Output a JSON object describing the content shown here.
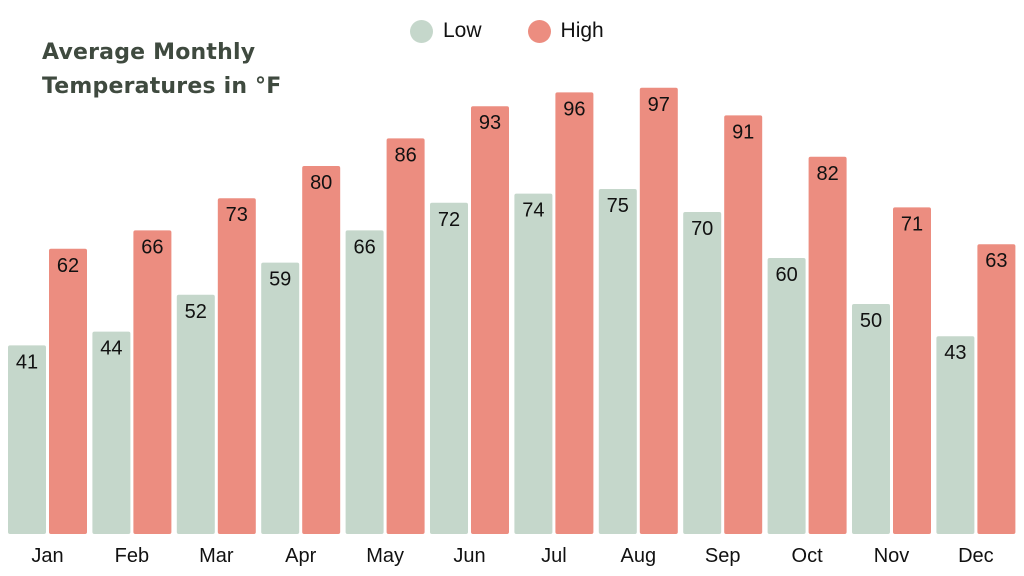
{
  "chart_data": {
    "type": "bar",
    "title": "Average Monthly Temperatures in °F",
    "categories": [
      "Jan",
      "Feb",
      "Mar",
      "Apr",
      "May",
      "Jun",
      "Jul",
      "Aug",
      "Sep",
      "Oct",
      "Nov",
      "Dec"
    ],
    "series": [
      {
        "name": "Low",
        "color": "#c5d7cb",
        "values": [
          41,
          44,
          52,
          59,
          66,
          72,
          74,
          75,
          70,
          60,
          50,
          43
        ]
      },
      {
        "name": "High",
        "color": "#ec8d80",
        "values": [
          62,
          66,
          73,
          80,
          86,
          93,
          96,
          97,
          91,
          82,
          71,
          63
        ]
      }
    ],
    "ylim": [
      0,
      105
    ],
    "grid": false,
    "legend_position": "top-center",
    "data_labels": true,
    "xlabel": "",
    "ylabel": ""
  }
}
